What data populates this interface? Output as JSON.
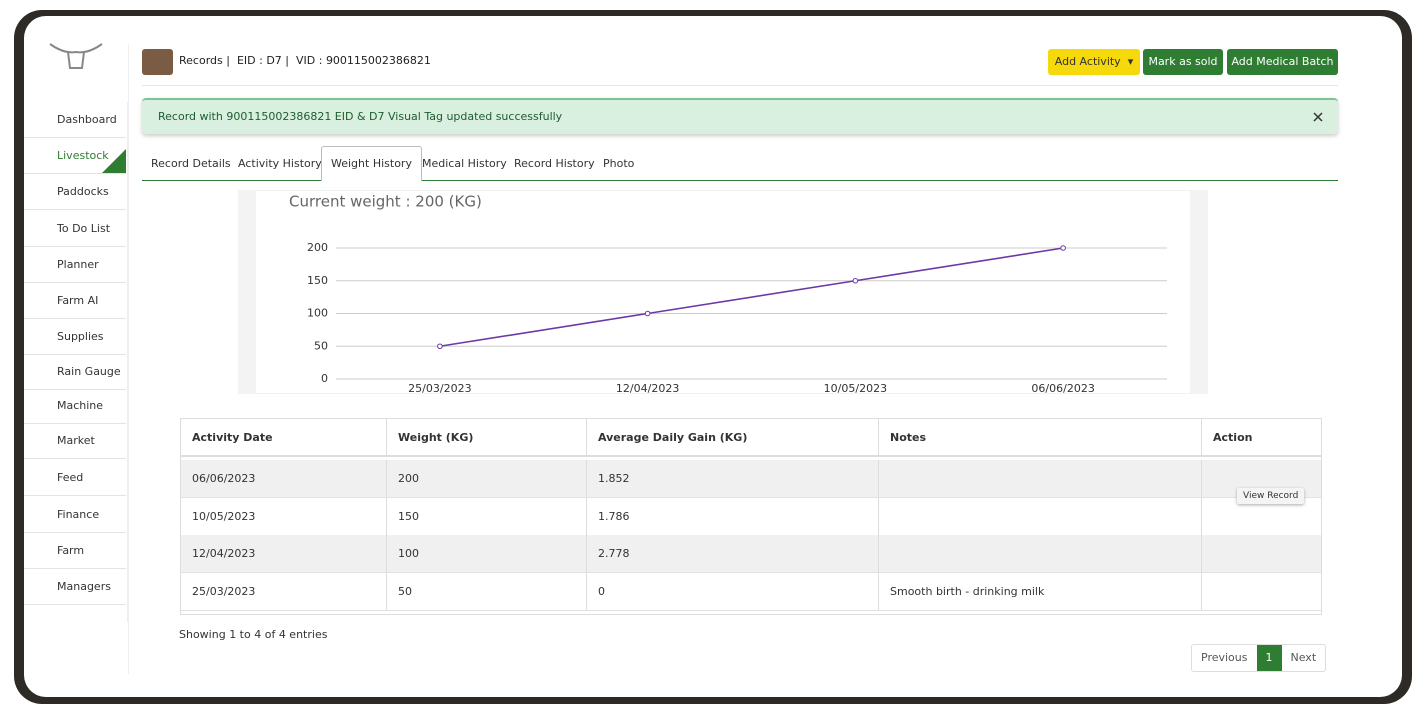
{
  "header": {
    "records": "Records",
    "eid": "EID : D7",
    "vid": "VID : 900115002386821",
    "buttons": [
      "Add Activity",
      "Mark as sold",
      "Add Medical Batch"
    ]
  },
  "alert": {
    "message": "Record with 900115002386821 EID & D7 Visual Tag updated successfully"
  },
  "nav": {
    "items": [
      "Dashboard",
      "Livestock",
      "Paddocks",
      "To Do List",
      "Planner",
      "Farm AI",
      "Supplies",
      "Rain Gauge",
      "Machine",
      "Market",
      "Feed",
      "Finance",
      "Farm",
      "Managers"
    ]
  },
  "tabs": [
    "Record Details",
    "Activity History",
    "Weight History",
    "Medical History",
    "Record History",
    "Photo"
  ],
  "weight_chart": {
    "type": "line",
    "title": "Current weight : 200 (KG)",
    "categories": [
      "25/03/2023",
      "12/04/2023",
      "10/05/2023",
      "06/06/2023"
    ],
    "values": [
      50,
      100,
      150,
      200
    ],
    "color": "#6b3aa6",
    "ylim": [
      0,
      200
    ],
    "yticks": [
      0,
      50,
      100,
      150,
      200
    ],
    "grid": true
  },
  "table": {
    "headers": [
      "Activity Date",
      "Weight (KG)",
      "Average Daily Gain (KG)",
      "Notes",
      "Action"
    ],
    "rows": [
      [
        "06/06/2023",
        "200",
        "1.852",
        ""
      ],
      [
        "10/05/2023",
        "150",
        "1.786",
        ""
      ],
      [
        "12/04/2023",
        "100",
        "2.778",
        ""
      ],
      [
        "25/03/2023",
        "50",
        "0",
        "Smooth birth - drinking milk"
      ]
    ],
    "tooltip": "View Record",
    "info": "Showing 1 to 4 of 4 entries",
    "pagination": [
      "Previous",
      "1",
      "Next"
    ]
  }
}
